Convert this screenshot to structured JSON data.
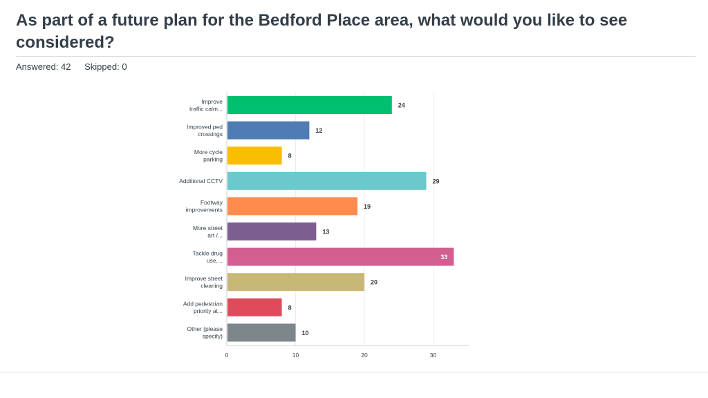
{
  "header": {
    "title": "As part of a future plan for the Bedford Place area, what would you like to see considered?",
    "answered": "Answered: 42",
    "skipped": "Skipped: 0"
  },
  "chart_data": {
    "type": "bar",
    "orientation": "horizontal",
    "categories": [
      [
        "Improve",
        "traffic calm..."
      ],
      [
        "Improved ped",
        "crossings"
      ],
      [
        "More cycle",
        "parking"
      ],
      [
        "Additional CCTV"
      ],
      [
        "Footway",
        "improvements"
      ],
      [
        "More street",
        "art /..."
      ],
      [
        "Tackle drug",
        "use,..."
      ],
      [
        "Improve street",
        "cleaning"
      ],
      [
        "Add pedestrian",
        "priority at..."
      ],
      [
        "Other (please",
        "specify)"
      ]
    ],
    "values": [
      24,
      12,
      8,
      29,
      19,
      13,
      33,
      20,
      8,
      10
    ],
    "colors": [
      "#00bf6f",
      "#507cb6",
      "#f9be00",
      "#6bc8cd",
      "#ff8b4f",
      "#7d5e90",
      "#d25f90",
      "#c7b879",
      "#de4c5b",
      "#7c868b"
    ],
    "xlim": [
      0,
      35
    ],
    "xticks": [
      0,
      10,
      20,
      30
    ],
    "grid": true
  }
}
